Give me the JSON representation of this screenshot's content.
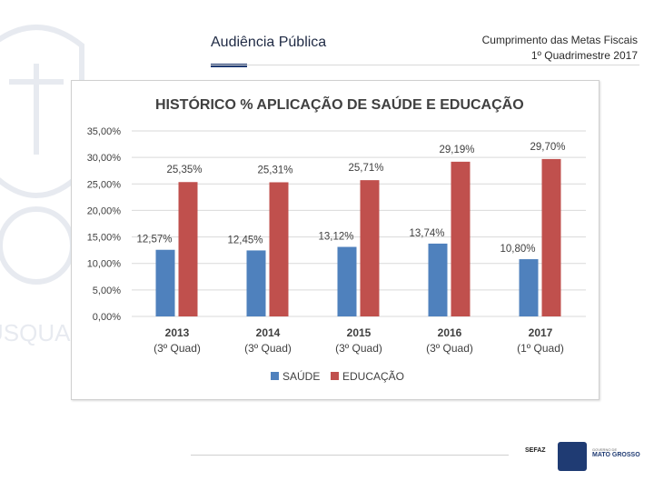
{
  "header": {
    "slide_title": "Audiência Pública",
    "subtitle_line1": "Cumprimento das Metas Fiscais",
    "subtitle_line2": "1º Quadrimestre 2017"
  },
  "watermark_text": "USQUA",
  "chart_data": {
    "type": "bar",
    "title": "HISTÓRICO % APLICAÇÃO DE SAÚDE E EDUCAÇÃO",
    "categories": [
      "2013",
      "2014",
      "2015",
      "2016",
      "2017"
    ],
    "category_sublabels": [
      "(3º Quad)",
      "(3º Quad)",
      "(3º Quad)",
      "(3º Quad)",
      "(1º Quad)"
    ],
    "series": [
      {
        "name": "SAÚDE",
        "color": "#4f81bd",
        "values": [
          12.57,
          12.45,
          13.12,
          13.74,
          10.8
        ],
        "labels": [
          "12,57%",
          "12,45%",
          "13,12%",
          "13,74%",
          "10,80%"
        ]
      },
      {
        "name": "EDUCAÇÃO",
        "color": "#c0504d",
        "values": [
          25.35,
          25.31,
          25.71,
          29.19,
          29.7
        ],
        "labels": [
          "25,35%",
          "25,31%",
          "25,71%",
          "29,19%",
          "29,70%"
        ]
      }
    ],
    "yticks": [
      "0,00%",
      "5,00%",
      "10,00%",
      "15,00%",
      "20,00%",
      "25,00%",
      "30,00%",
      "35,00%"
    ],
    "ylim": [
      0,
      35
    ],
    "ystep": 5,
    "grid": true,
    "legend_position": "bottom",
    "xlabel": "",
    "ylabel": ""
  },
  "footer": {
    "logo_left": "SEFAZ",
    "logo_right_small": "GOVERNO DE",
    "logo_right_name": "MATO GROSSO"
  }
}
